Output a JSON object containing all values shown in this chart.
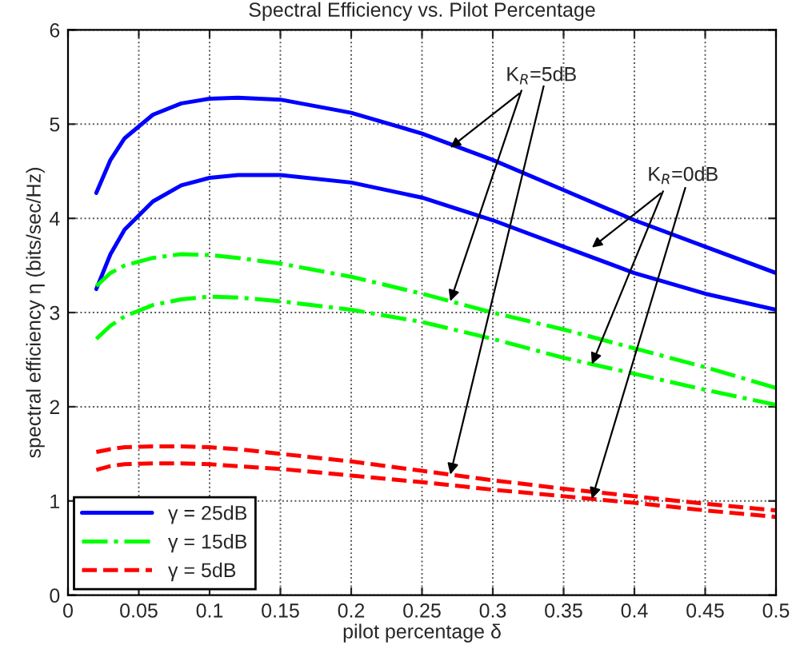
{
  "chart_data": {
    "type": "line",
    "title": "Spectral Efficiency vs. Pilot Percentage",
    "xlabel": "pilot percentage δ",
    "ylabel": "spectral efficiency η (bits/sec/Hz)",
    "x": [
      0.02,
      0.03,
      0.04,
      0.06,
      0.08,
      0.1,
      0.12,
      0.15,
      0.2,
      0.25,
      0.3,
      0.35,
      0.4,
      0.45,
      0.5
    ],
    "series": [
      {
        "name": "γ = 25dB",
        "color": "#0000ff",
        "line_style": "solid",
        "values": [
          4.27,
          4.62,
          4.85,
          5.1,
          5.22,
          5.27,
          5.28,
          5.26,
          5.12,
          4.9,
          4.62,
          4.3,
          3.98,
          3.7,
          3.42
        ]
      },
      {
        "color": "#0000ff",
        "line_style": "solid",
        "values": [
          3.25,
          3.62,
          3.88,
          4.18,
          4.35,
          4.43,
          4.46,
          4.46,
          4.38,
          4.22,
          3.98,
          3.7,
          3.42,
          3.2,
          3.03
        ]
      },
      {
        "name": "γ = 15dB",
        "color": "#00ff00",
        "line_style": "dashdot",
        "values": [
          3.28,
          3.42,
          3.5,
          3.58,
          3.62,
          3.61,
          3.58,
          3.52,
          3.38,
          3.2,
          3.0,
          2.82,
          2.62,
          2.42,
          2.2
        ]
      },
      {
        "color": "#00ff00",
        "line_style": "dashdot",
        "values": [
          2.72,
          2.86,
          2.96,
          3.08,
          3.14,
          3.17,
          3.16,
          3.12,
          3.03,
          2.9,
          2.72,
          2.52,
          2.35,
          2.18,
          2.02
        ]
      },
      {
        "name": "γ = 5dB",
        "color": "#ff0000",
        "line_style": "dashed",
        "values": [
          1.52,
          1.55,
          1.57,
          1.58,
          1.58,
          1.57,
          1.55,
          1.5,
          1.42,
          1.32,
          1.22,
          1.13,
          1.05,
          0.97,
          0.9
        ]
      },
      {
        "color": "#ff0000",
        "line_style": "dashed",
        "values": [
          1.33,
          1.37,
          1.39,
          1.4,
          1.4,
          1.39,
          1.37,
          1.34,
          1.27,
          1.2,
          1.12,
          1.05,
          0.98,
          0.9,
          0.83
        ]
      }
    ],
    "annotations": [
      {
        "text": "K$_{R}$=5dB",
        "x": 0.27,
        "y": 4.75
      },
      {
        "text": "K$_{R}$=0dB",
        "x": 0.37,
        "y": 3.69
      }
    ],
    "xlim": [
      0,
      0.5
    ],
    "ylim": [
      0,
      6
    ],
    "xticks": [
      0,
      0.05,
      0.1,
      0.15,
      0.2,
      0.25,
      0.3,
      0.35,
      0.4,
      0.45,
      0.5
    ],
    "yticks": [
      0,
      1,
      2,
      3,
      4,
      5,
      6
    ],
    "grid": true,
    "legend": "bottom left"
  }
}
